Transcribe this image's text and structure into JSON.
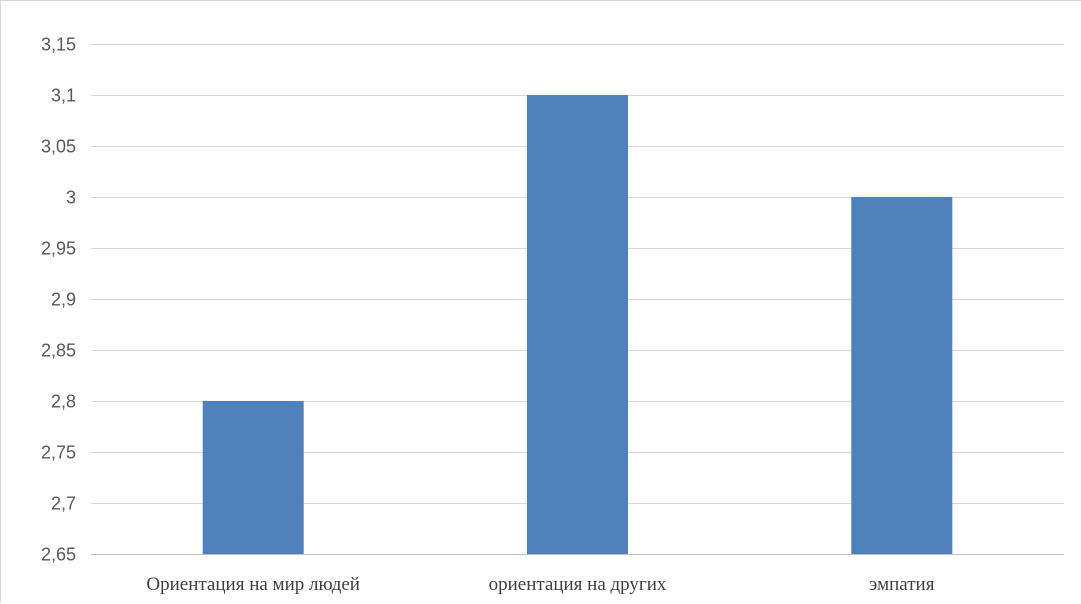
{
  "chart_data": {
    "type": "bar",
    "categories": [
      "Ориентация на мир людей",
      "ориентация на других",
      "эмпатия"
    ],
    "values": [
      2.8,
      3.1,
      3.0
    ],
    "ylim": [
      2.65,
      3.15
    ],
    "yticks": [
      2.65,
      2.7,
      2.75,
      2.8,
      2.85,
      2.9,
      2.95,
      3,
      3.05,
      3.1,
      3.15
    ],
    "ytick_labels": [
      "2,65",
      "2,7",
      "2,75",
      "2,8",
      "2,85",
      "2,9",
      "2,95",
      "3",
      "3,05",
      "3,1",
      "3,15"
    ],
    "grid": true,
    "legend": "none",
    "title": "",
    "xlabel": "",
    "ylabel": "",
    "colors": {
      "bar": "#4f81bd",
      "grid": "#d9d9d9",
      "tick_text": "#595959"
    }
  }
}
